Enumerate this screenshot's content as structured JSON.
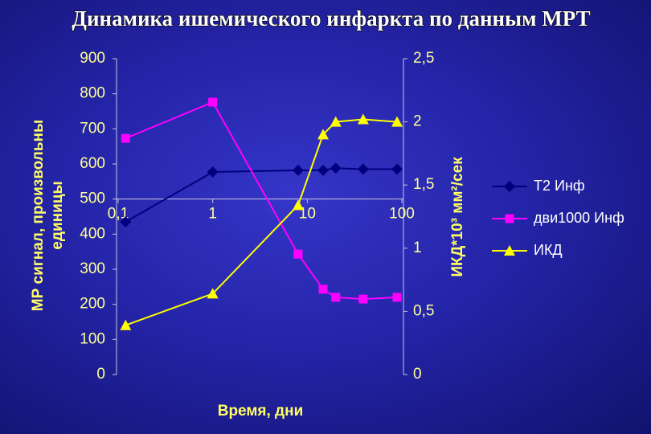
{
  "chart_data": {
    "type": "line",
    "title": "Динамика ишемического инфаркта  по данным МРТ",
    "xlabel": "Время, дни",
    "ylabel": [
      "МР сигнал, произвольны",
      "единицы"
    ],
    "y2label": "ИКД*10³ мм²/сек",
    "xscale": "log",
    "x": [
      0.12,
      1,
      8,
      14.7,
      20,
      39,
      89
    ],
    "xlim": [
      0.1,
      100
    ],
    "xticks": [
      {
        "value": 0.1,
        "label": "0,1"
      },
      1,
      10,
      100
    ],
    "ylim": [
      0,
      900
    ],
    "yticks": [
      0,
      100,
      200,
      300,
      400,
      500,
      600,
      700,
      800,
      900
    ],
    "y2lim": [
      0,
      2.5
    ],
    "y2ticks": [
      0,
      {
        "value": 0.5,
        "label": "0,5"
      },
      1,
      {
        "value": 1.5,
        "label": "1,5"
      },
      2,
      {
        "value": 2.5,
        "label": "2,5"
      }
    ],
    "legend": "right",
    "series": [
      {
        "name": "Т2 Инф",
        "color": "#00007f",
        "marker": "diamond",
        "values": [
          435,
          577,
          582,
          582,
          588,
          585,
          585
        ]
      },
      {
        "name": "дви1000 Инф",
        "color": "#ff00ff",
        "marker": "square",
        "values": [
          673,
          776,
          343,
          243,
          220,
          215,
          220
        ]
      },
      {
        "name": "ИКД",
        "color": "#ffff00",
        "marker": "triangle",
        "axis": "y2",
        "values": [
          0.39,
          0.64,
          1.34,
          1.9,
          2.0,
          2.02,
          2.0
        ]
      }
    ]
  }
}
